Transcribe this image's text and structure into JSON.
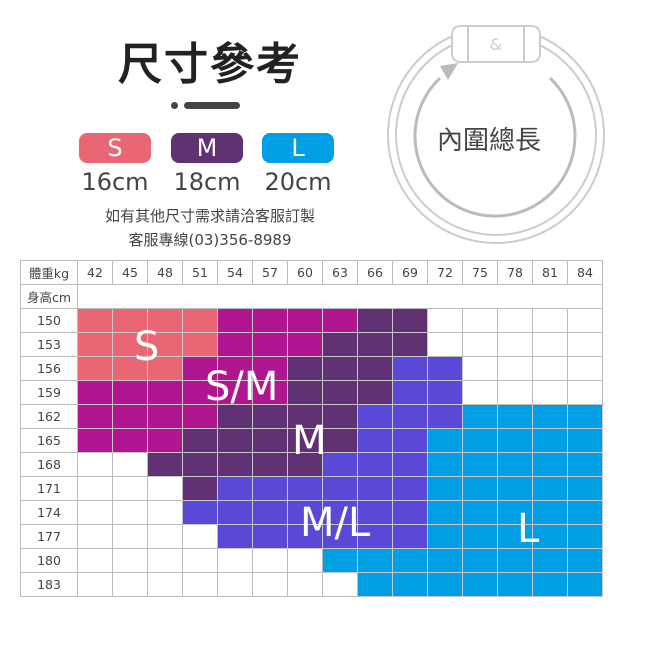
{
  "title": "尺寸參考",
  "sizes": [
    {
      "label": "S",
      "length": "16cm",
      "color": "#e96675"
    },
    {
      "label": "M",
      "length": "18cm",
      "color": "#623174"
    },
    {
      "label": "L",
      "length": "20cm",
      "color": "#009fe3"
    }
  ],
  "note1": "如有其他尺寸需求請洽客服訂製",
  "note2": "客服專線(03)356-8989",
  "ring_label": "內圍總長",
  "table": {
    "weight_header": "體重kg",
    "height_header": "身高cm",
    "weights": [
      "42",
      "45",
      "48",
      "51",
      "54",
      "57",
      "60",
      "63",
      "66",
      "69",
      "72",
      "75",
      "78",
      "81",
      "84"
    ],
    "heights": [
      "150",
      "153",
      "156",
      "159",
      "162",
      "165",
      "168",
      "171",
      "174",
      "177",
      "180",
      "183"
    ],
    "zone_colors": {
      "S": "#e96675",
      "S/M": "#b0168f",
      "M": "#623174",
      "M/L": "#5a49d6",
      "L": "#009fe3"
    },
    "zone_labels": [
      "S",
      "S/M",
      "M",
      "M/L",
      "L"
    ],
    "cells": [
      "s s s s p p p p m m w w w w w",
      "s s s s p p p m m m w w w w w",
      "s s s p p p m m m b b w w w w",
      "p p p p p p m m m b b w w w w",
      "p p p p m m m m b b b l l l l",
      "p p p m m m m m b b l l l l l",
      "w w m m m m m b b b l l l l l",
      "w w w m b b b b b b l l l l l",
      "w w w b b b b b b b l l l l l",
      "w w w w b b b b b b l l l l l",
      "w w w w w w w l l l l l l l l",
      "w w w w w w w w l l l l l l l"
    ]
  }
}
